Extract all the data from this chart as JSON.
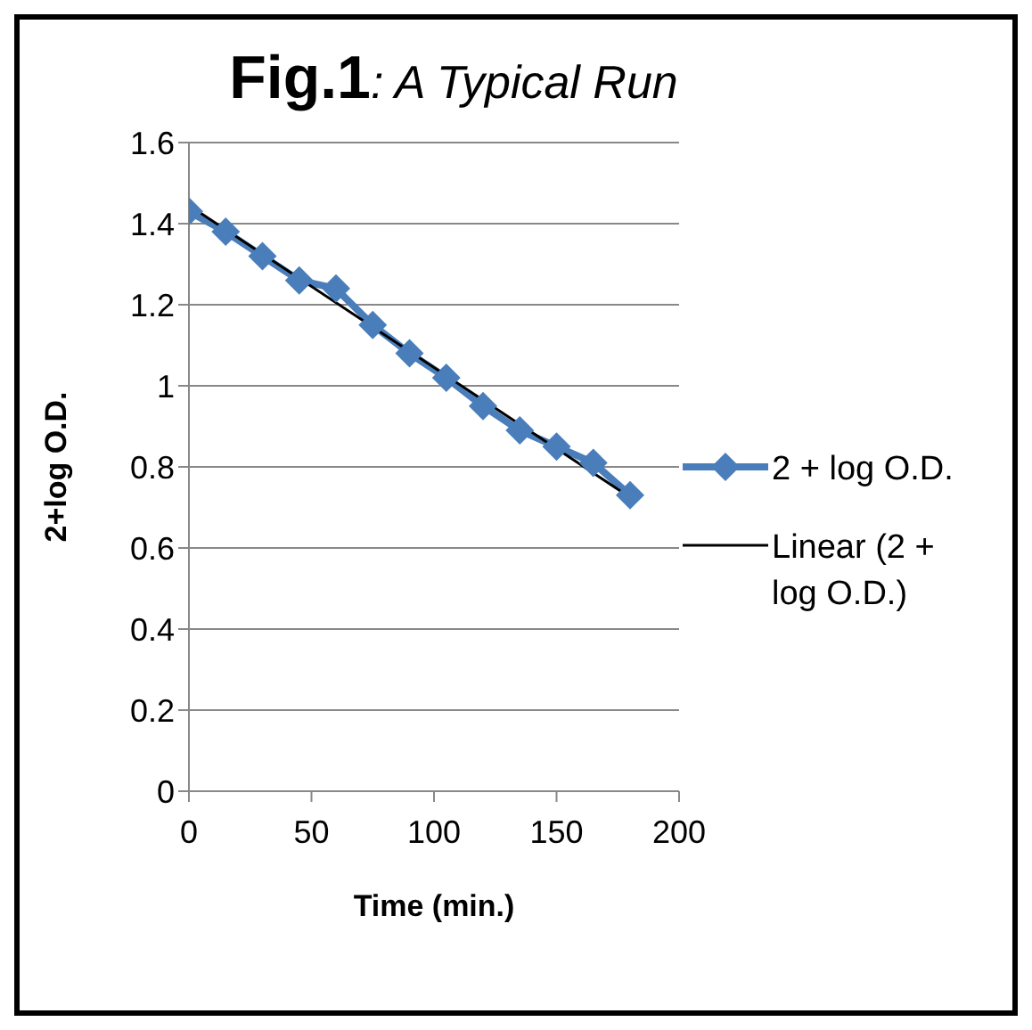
{
  "chart_data": {
    "type": "line",
    "title": "Fig.1: A Typical Run",
    "xlabel": "Time (min.)",
    "ylabel": "2+log O.D.",
    "x": [
      0,
      15,
      30,
      45,
      60,
      75,
      90,
      105,
      120,
      135,
      150,
      165,
      180
    ],
    "series": [
      {
        "name": "2 + log O.D.",
        "color": "#4a7ebb",
        "values": [
          1.43,
          1.38,
          1.32,
          1.26,
          1.24,
          1.15,
          1.08,
          1.02,
          0.95,
          0.89,
          0.85,
          0.81,
          0.73
        ],
        "marker": "diamond"
      },
      {
        "name": "Linear (2 + log O.D.)",
        "color": "#000000",
        "type": "line",
        "x": [
          0,
          180
        ],
        "values": [
          1.445,
          0.725
        ],
        "marker": "none"
      }
    ],
    "xlim": [
      0,
      200
    ],
    "xticks": [
      0,
      50,
      100,
      150,
      200
    ],
    "ylim": [
      0,
      1.6
    ],
    "yticks": [
      0,
      0.2,
      0.4,
      0.6,
      0.8,
      1,
      1.2,
      1.4,
      1.6
    ],
    "grid": "y",
    "legend": "right"
  }
}
